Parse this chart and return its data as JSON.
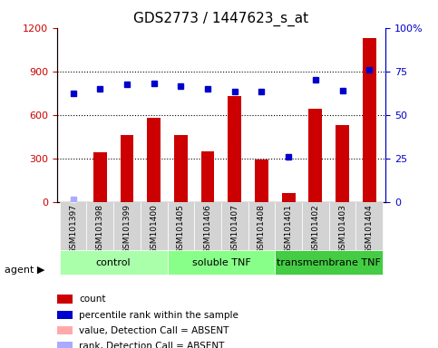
{
  "title": "GDS2773 / 1447623_s_at",
  "samples": [
    "GSM101397",
    "GSM101398",
    "GSM101399",
    "GSM101400",
    "GSM101405",
    "GSM101406",
    "GSM101407",
    "GSM101408",
    "GSM101401",
    "GSM101402",
    "GSM101403",
    "GSM101404"
  ],
  "counts": [
    0,
    340,
    460,
    580,
    460,
    350,
    730,
    290,
    60,
    640,
    530,
    1130
  ],
  "percentile_ranks": [
    750,
    780,
    810,
    820,
    800,
    780,
    760,
    760,
    310,
    840,
    770,
    910
  ],
  "absent_rank": [
    20
  ],
  "absent_rank_idx": [
    0
  ],
  "groups": [
    {
      "label": "control",
      "start": 0,
      "end": 4,
      "color": "#aaffaa"
    },
    {
      "label": "soluble TNF",
      "start": 4,
      "end": 8,
      "color": "#88ff88"
    },
    {
      "label": "transmembrane TNF",
      "start": 8,
      "end": 12,
      "color": "#44cc44"
    }
  ],
  "ylim_left": [
    0,
    1200
  ],
  "ylim_right": [
    0,
    100
  ],
  "yticks_left": [
    0,
    300,
    600,
    900,
    1200
  ],
  "ytick_labels_left": [
    "0",
    "300",
    "600",
    "900",
    "1200"
  ],
  "yticks_right": [
    0,
    25,
    50,
    75,
    100
  ],
  "ytick_labels_right": [
    "0",
    "25",
    "50",
    "75",
    "100%"
  ],
  "bar_color": "#cc0000",
  "dot_color": "#0000cc",
  "absent_bar_color": "#ffaaaa",
  "absent_dot_color": "#aaaaff",
  "bg_color": "#ffffff",
  "plot_bg_color": "#ffffff",
  "grid_color": "#000000",
  "legend_items": [
    {
      "color": "#cc0000",
      "label": "count"
    },
    {
      "color": "#0000cc",
      "label": "percentile rank within the sample"
    },
    {
      "color": "#ffaaaa",
      "label": "value, Detection Call = ABSENT"
    },
    {
      "color": "#aaaaff",
      "label": "rank, Detection Call = ABSENT"
    }
  ]
}
